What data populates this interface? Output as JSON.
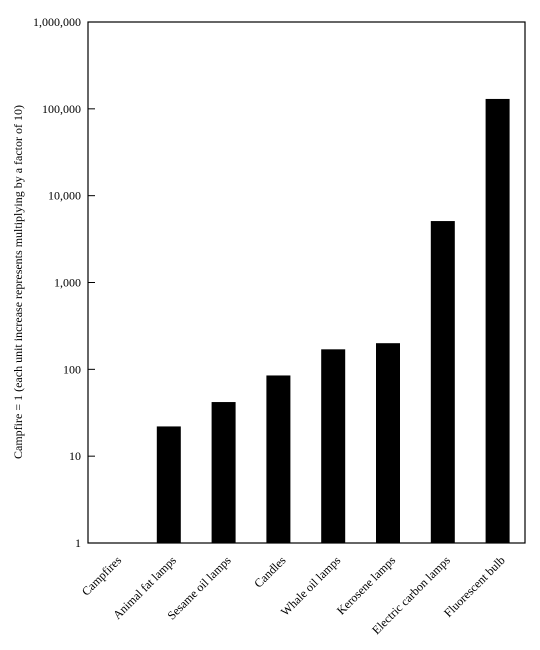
{
  "chart_data": {
    "type": "bar",
    "scale": "log",
    "ylabel": "Campfire = 1 (each unit increase represents multiplying by a factor of 10)",
    "xlabel": "",
    "ylim": [
      1,
      1000000
    ],
    "yticks": [
      1,
      10,
      100,
      1000,
      10000,
      100000,
      1000000
    ],
    "ytick_labels": [
      "1",
      "10",
      "100",
      "1,000",
      "10,000",
      "100,000",
      "1,000,000"
    ],
    "categories": [
      "Campfires",
      "Animal fat lamps",
      "Sesame oil lamps",
      "Candles",
      "Whale oil lamps",
      "Kerosene lamps",
      "Electric carbon lamps",
      "Fluorescent bulb"
    ],
    "values": [
      1,
      22,
      42,
      85,
      170,
      200,
      5100,
      130000
    ],
    "bar_color": "#000000",
    "grid": false
  }
}
